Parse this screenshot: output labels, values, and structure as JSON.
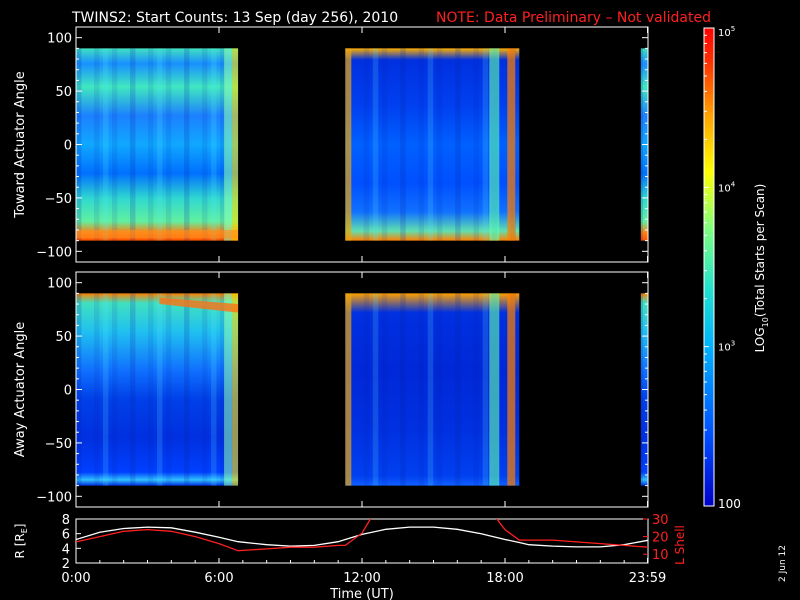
{
  "title": {
    "main": "TWINS2: Start Counts: 13 Sep (day 256), 2010",
    "note": "NOTE: Data Preliminary – Not validated",
    "note_color": "#ff2020"
  },
  "side_stamp": "2 Jun 12",
  "chart_data": [
    {
      "type": "heatmap",
      "ylabel": "Toward Actuator Angle",
      "ylim": [
        -110,
        110
      ],
      "yticks": [
        "100",
        "50",
        "0",
        "−50",
        "−100"
      ],
      "ytick_values": [
        100,
        50,
        0,
        -50,
        -100
      ],
      "data_y_range": [
        -90,
        90
      ],
      "coverage_hours": [
        [
          0,
          6.8
        ],
        [
          11.3,
          18.6
        ],
        [
          23.7,
          24
        ]
      ],
      "scale": "log"
    },
    {
      "type": "heatmap",
      "ylabel": "Away Actuator Angle",
      "ylim": [
        -110,
        110
      ],
      "yticks": [
        "100",
        "50",
        "0",
        "−50",
        "−100"
      ],
      "ytick_values": [
        100,
        50,
        0,
        -50,
        -100
      ],
      "data_y_range": [
        -90,
        90
      ],
      "coverage_hours": [
        [
          0,
          6.8
        ],
        [
          11.3,
          18.6
        ],
        [
          23.7,
          24
        ]
      ],
      "scale": "log"
    },
    {
      "type": "line",
      "xlabel": "Time (UT)",
      "xticks": [
        "0:00",
        "6:00",
        "12:00",
        "18:00",
        "23:59"
      ],
      "xtick_values": [
        0,
        6,
        12,
        18,
        23.98
      ],
      "xlim": [
        0,
        24
      ],
      "left_axis": {
        "label": "R [R",
        "label_sub": "E",
        "label_end": "]",
        "ylim": [
          2,
          8
        ],
        "ticks": [
          "2",
          "4",
          "6",
          "8"
        ],
        "tick_values": [
          2,
          4,
          6,
          8
        ],
        "color": "#ffffff"
      },
      "right_axis": {
        "label": "L Shell",
        "ylim": [
          5,
          30
        ],
        "ticks": [
          "10",
          "20",
          "30"
        ],
        "tick_values": [
          10,
          20,
          30
        ],
        "color": "#ff2020"
      },
      "series": [
        {
          "axis": "left",
          "color": "#ffffff",
          "x": [
            0,
            1,
            2,
            3,
            4,
            5,
            6,
            6.8,
            8,
            9,
            10,
            11,
            11.3,
            12,
            13,
            14,
            15,
            16,
            17,
            18,
            18.6,
            19,
            20,
            21,
            22,
            23,
            24
          ],
          "y": [
            5.2,
            6.2,
            6.7,
            6.9,
            6.8,
            6.2,
            5.5,
            4.9,
            4.5,
            4.3,
            4.4,
            4.9,
            5.2,
            5.9,
            6.6,
            6.9,
            6.9,
            6.6,
            6.0,
            5.2,
            4.8,
            4.5,
            4.3,
            4.2,
            4.2,
            4.5,
            5.1
          ]
        },
        {
          "axis": "right",
          "color": "#ff2020",
          "x": [
            0,
            1,
            2,
            3,
            4,
            5,
            6,
            6.8,
            8,
            9,
            10,
            11,
            11.3,
            12,
            12.4,
            17.6,
            18,
            18.6,
            19,
            20,
            21,
            22,
            23,
            24
          ],
          "y": [
            17,
            20,
            23,
            24,
            23,
            20,
            16,
            12,
            13,
            14,
            14,
            15,
            15,
            22,
            31,
            31,
            24,
            18,
            18,
            18,
            17,
            16,
            15,
            14
          ]
        }
      ]
    }
  ],
  "colorbar": {
    "label_prefix": "LOG",
    "label_sub": "10",
    "label_rest": "(Total Starts per Scan)",
    "min_label": "100",
    "mid_labels": [
      {
        "base": "10",
        "exp": "3",
        "value": 1000
      },
      {
        "base": "10",
        "exp": "4",
        "value": 10000
      }
    ],
    "max_label": {
      "base": "10",
      "exp": "5",
      "value": 100000
    },
    "range": [
      100,
      100000
    ],
    "colors": [
      "#0000c8",
      "#0050ff",
      "#00b0ff",
      "#20e0d0",
      "#80ff80",
      "#ffff00",
      "#ffa000",
      "#ff3000",
      "#ff0000"
    ]
  }
}
